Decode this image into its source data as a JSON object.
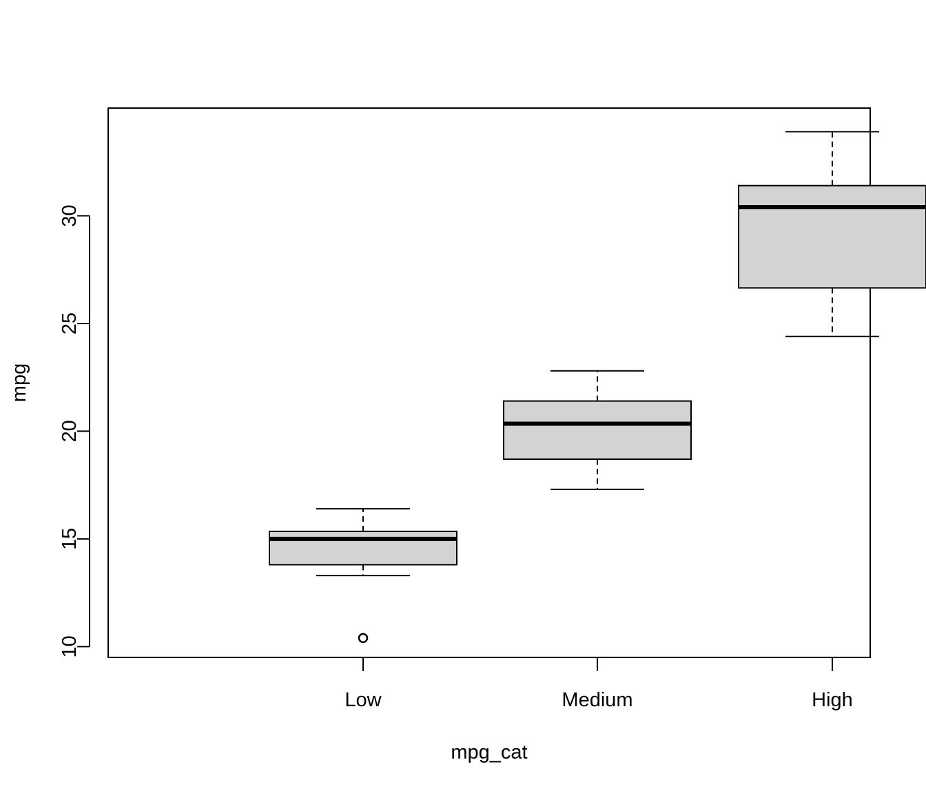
{
  "chart_data": {
    "type": "boxplot",
    "title": "",
    "xlabel": "mpg_cat",
    "ylabel": "mpg",
    "ylim": [
      9.5,
      35.0
    ],
    "yticks": [
      10,
      15,
      20,
      25,
      30
    ],
    "categories": [
      "Low",
      "Medium",
      "High"
    ],
    "boxes": [
      {
        "category": "Low",
        "whisker_low": 13.3,
        "q1": 13.8,
        "median": 15.0,
        "q3": 15.35,
        "whisker_high": 16.4,
        "outliers": [
          10.4
        ]
      },
      {
        "category": "Medium",
        "whisker_low": 17.3,
        "q1": 18.7,
        "median": 20.35,
        "q3": 21.4,
        "whisker_high": 22.8,
        "outliers": []
      },
      {
        "category": "High",
        "whisker_low": 24.4,
        "q1": 26.65,
        "median": 30.4,
        "q3": 31.4,
        "whisker_high": 33.9,
        "outliers": []
      }
    ],
    "grid": false,
    "box_fill": "#d3d3d3"
  }
}
